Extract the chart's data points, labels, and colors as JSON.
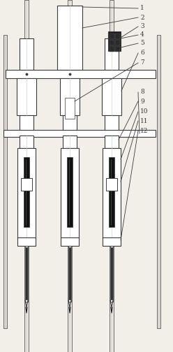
{
  "fig_width": 2.48,
  "fig_height": 5.04,
  "dpi": 100,
  "bg_color": "#f2efe9",
  "line_color": "#3a3a3a",
  "label_data": [
    [
      "1",
      175,
      9,
      120,
      15
    ],
    [
      "2",
      175,
      22,
      108,
      36
    ],
    [
      "3",
      175,
      34,
      148,
      52
    ],
    [
      "4",
      175,
      46,
      142,
      58
    ],
    [
      "5",
      175,
      58,
      148,
      68
    ],
    [
      "6",
      175,
      72,
      155,
      88
    ],
    [
      "7",
      175,
      85,
      128,
      100
    ],
    [
      "8",
      175,
      130,
      168,
      147
    ],
    [
      "9",
      175,
      143,
      158,
      158
    ],
    [
      "10",
      175,
      158,
      152,
      168
    ],
    [
      "11",
      175,
      170,
      148,
      178
    ],
    [
      "12",
      175,
      183,
      148,
      192
    ]
  ]
}
